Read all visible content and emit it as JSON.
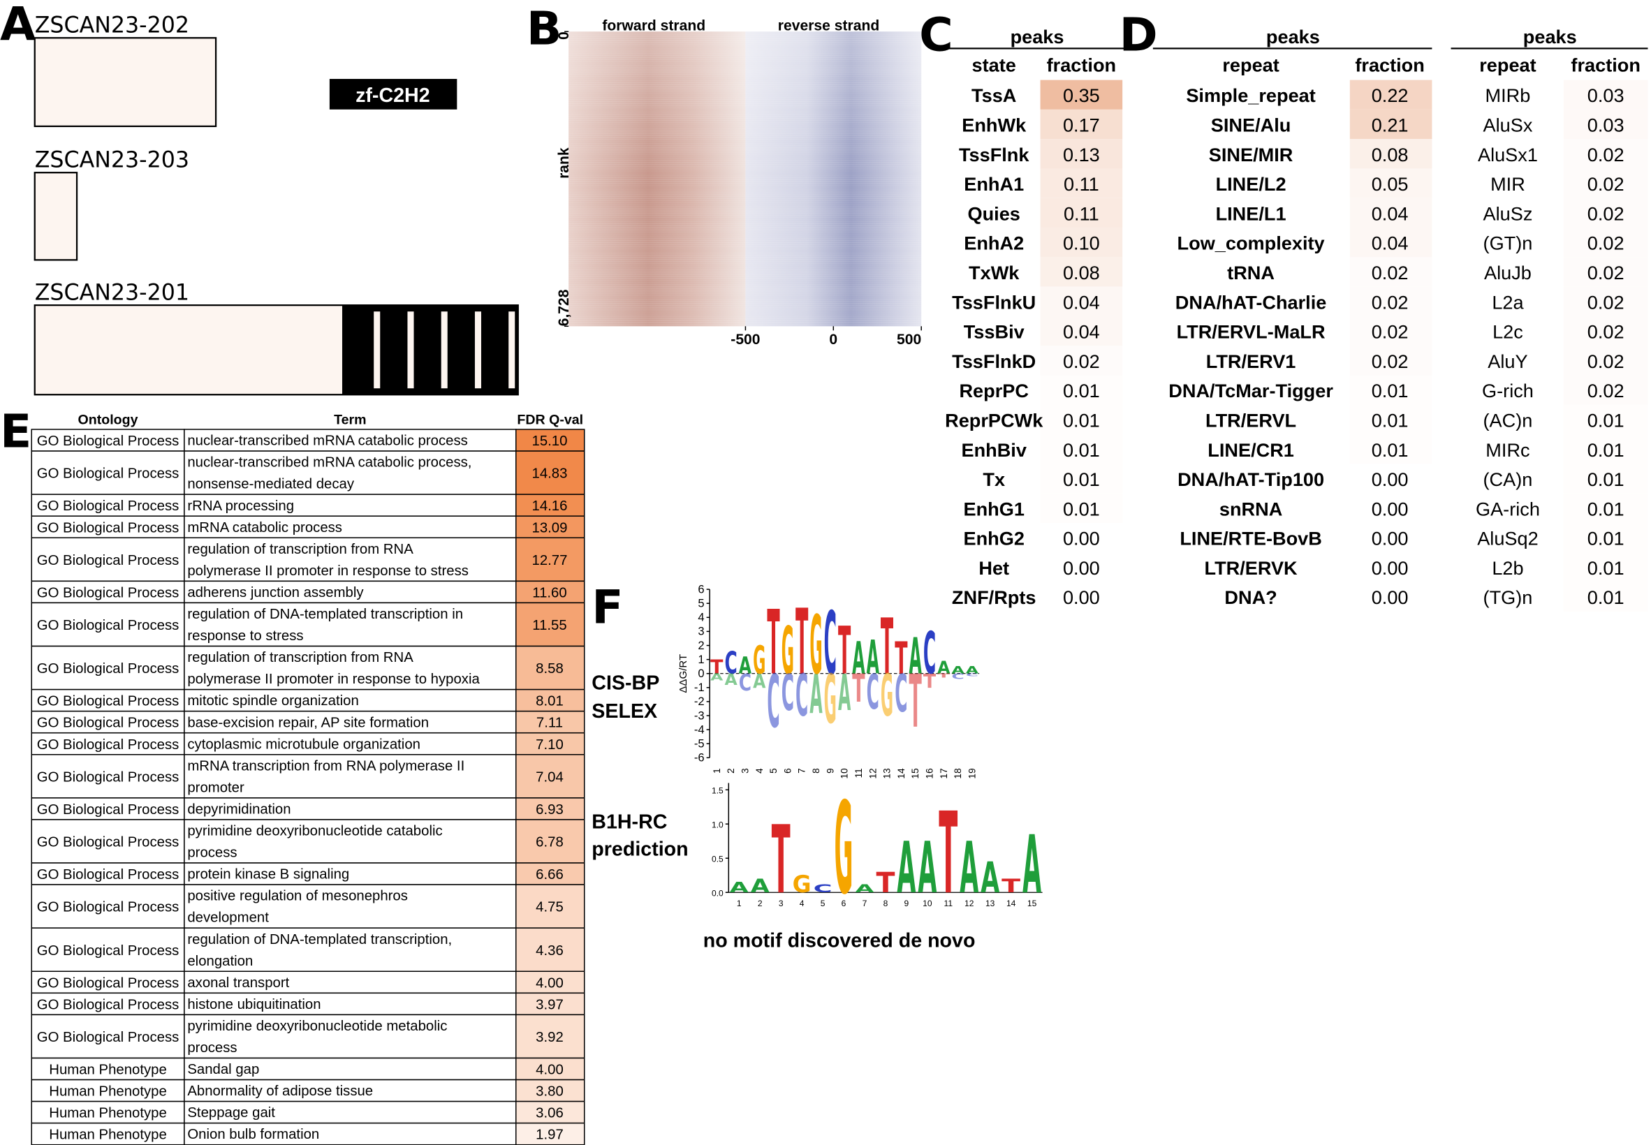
{
  "panel_labels": [
    "A",
    "B",
    "C",
    "D",
    "E",
    "F"
  ],
  "panel_a": {
    "transcripts": [
      "ZSCAN23-202",
      "ZSCAN23-203",
      "ZSCAN23-201"
    ],
    "domain": "zf-C2H2"
  },
  "panel_b": {
    "strands": [
      "forward strand",
      "reverse strand"
    ],
    "ylabel": "rank",
    "ylim": [
      0,
      6728
    ],
    "yticks": [
      0,
      {
        "value": 6728,
        "label": "6,728"
      }
    ],
    "xlim": [
      -500,
      500
    ],
    "xticks": [
      -500,
      0,
      500
    ]
  },
  "panel_c": {
    "header": "peaks",
    "columns": [
      "state",
      "fraction"
    ],
    "rows": [
      [
        "TssA",
        "0.35"
      ],
      [
        "EnhWk",
        "0.17"
      ],
      [
        "TssFlnk",
        "0.13"
      ],
      [
        "EnhA1",
        "0.11"
      ],
      [
        "Quies",
        "0.11"
      ],
      [
        "EnhA2",
        "0.10"
      ],
      [
        "TxWk",
        "0.08"
      ],
      [
        "TssFlnkU",
        "0.04"
      ],
      [
        "TssBiv",
        "0.04"
      ],
      [
        "TssFlnkD",
        "0.02"
      ],
      [
        "ReprPC",
        "0.01"
      ],
      [
        "ReprPCWk",
        "0.01"
      ],
      [
        "EnhBiv",
        "0.01"
      ],
      [
        "Tx",
        "0.01"
      ],
      [
        "EnhG1",
        "0.01"
      ],
      [
        "EnhG2",
        "0.00"
      ],
      [
        "Het",
        "0.00"
      ],
      [
        "ZNF/Rpts",
        "0.00"
      ]
    ]
  },
  "panel_d": {
    "tables": [
      {
        "header": "peaks",
        "columns": [
          "repeat",
          "fraction"
        ],
        "rows": [
          [
            "Simple_repeat",
            "0.22"
          ],
          [
            "SINE/Alu",
            "0.21"
          ],
          [
            "SINE/MIR",
            "0.08"
          ],
          [
            "LINE/L2",
            "0.05"
          ],
          [
            "LINE/L1",
            "0.04"
          ],
          [
            "Low_complexity",
            "0.04"
          ],
          [
            "tRNA",
            "0.02"
          ],
          [
            "DNA/hAT-Charlie",
            "0.02"
          ],
          [
            "LTR/ERVL-MaLR",
            "0.02"
          ],
          [
            "LTR/ERV1",
            "0.02"
          ],
          [
            "DNA/TcMar-Tigger",
            "0.01"
          ],
          [
            "LTR/ERVL",
            "0.01"
          ],
          [
            "LINE/CR1",
            "0.01"
          ],
          [
            "DNA/hAT-Tip100",
            "0.00"
          ],
          [
            "snRNA",
            "0.00"
          ],
          [
            "LINE/RTE-BovB",
            "0.00"
          ],
          [
            "LTR/ERVK",
            "0.00"
          ],
          [
            "DNA?",
            "0.00"
          ]
        ]
      },
      {
        "header": "peaks",
        "columns": [
          "repeat",
          "fraction"
        ],
        "rows": [
          [
            "MIRb",
            "0.03"
          ],
          [
            "AluSx",
            "0.03"
          ],
          [
            "AluSx1",
            "0.02"
          ],
          [
            "MIR",
            "0.02"
          ],
          [
            "AluSz",
            "0.02"
          ],
          [
            "(GT)n",
            "0.02"
          ],
          [
            "AluJb",
            "0.02"
          ],
          [
            "L2a",
            "0.02"
          ],
          [
            "L2c",
            "0.02"
          ],
          [
            "AluY",
            "0.02"
          ],
          [
            "G-rich",
            "0.02"
          ],
          [
            "(AC)n",
            "0.01"
          ],
          [
            "MIRc",
            "0.01"
          ],
          [
            "(CA)n",
            "0.01"
          ],
          [
            "GA-rich",
            "0.01"
          ],
          [
            "AluSq2",
            "0.01"
          ],
          [
            "L2b",
            "0.01"
          ],
          [
            "(TG)n",
            "0.01"
          ]
        ]
      }
    ]
  },
  "panel_e": {
    "columns": [
      "Ontology",
      "Term",
      "FDR Q-val"
    ],
    "rows": [
      {
        "ontology": "GO Biological Process",
        "term": [
          "nuclear-transcribed mRNA catabolic process"
        ],
        "fdr": "15.10"
      },
      {
        "ontology": "GO Biological Process",
        "term": [
          "nuclear-transcribed mRNA catabolic process,",
          "nonsense-mediated decay"
        ],
        "fdr": "14.83"
      },
      {
        "ontology": "GO Biological Process",
        "term": [
          "rRNA processing"
        ],
        "fdr": "14.16"
      },
      {
        "ontology": "GO Biological Process",
        "term": [
          "mRNA catabolic process"
        ],
        "fdr": "13.09"
      },
      {
        "ontology": "GO Biological Process",
        "term": [
          "regulation of transcription from RNA",
          "polymerase II promoter in response to stress"
        ],
        "fdr": "12.77"
      },
      {
        "ontology": "GO Biological Process",
        "term": [
          "adherens junction assembly"
        ],
        "fdr": "11.60"
      },
      {
        "ontology": "GO Biological Process",
        "term": [
          "regulation of DNA-templated transcription in",
          "response to stress"
        ],
        "fdr": "11.55"
      },
      {
        "ontology": "GO Biological Process",
        "term": [
          "regulation of transcription from RNA",
          "polymerase II promoter in response to hypoxia"
        ],
        "fdr": "8.58"
      },
      {
        "ontology": "GO Biological Process",
        "term": [
          "mitotic spindle organization"
        ],
        "fdr": "8.01"
      },
      {
        "ontology": "GO Biological Process",
        "term": [
          "base-excision repair, AP site formation"
        ],
        "fdr": "7.11"
      },
      {
        "ontology": "GO Biological Process",
        "term": [
          "cytoplasmic microtubule organization"
        ],
        "fdr": "7.10"
      },
      {
        "ontology": "GO Biological Process",
        "term": [
          "mRNA transcription from RNA polymerase II",
          "promoter"
        ],
        "fdr": "7.04"
      },
      {
        "ontology": "GO Biological Process",
        "term": [
          "depyrimidination"
        ],
        "fdr": "6.93"
      },
      {
        "ontology": "GO Biological Process",
        "term": [
          "pyrimidine deoxyribonucleotide catabolic",
          "process"
        ],
        "fdr": "6.78"
      },
      {
        "ontology": "GO Biological Process",
        "term": [
          "protein kinase B signaling"
        ],
        "fdr": "6.66"
      },
      {
        "ontology": "GO Biological Process",
        "term": [
          "positive regulation of mesonephros",
          "development"
        ],
        "fdr": "4.75"
      },
      {
        "ontology": "GO Biological Process",
        "term": [
          "regulation of DNA-templated transcription,",
          "elongation"
        ],
        "fdr": "4.36"
      },
      {
        "ontology": "GO Biological Process",
        "term": [
          "axonal transport"
        ],
        "fdr": "4.00"
      },
      {
        "ontology": "GO Biological Process",
        "term": [
          "histone ubiquitination"
        ],
        "fdr": "3.97"
      },
      {
        "ontology": "GO Biological Process",
        "term": [
          "pyrimidine deoxyribonucleotide metabolic",
          "process"
        ],
        "fdr": "3.92"
      },
      {
        "ontology": "Human Phenotype",
        "term": [
          "Sandal gap"
        ],
        "fdr": "4.00"
      },
      {
        "ontology": "Human Phenotype",
        "term": [
          "Abnormality of adipose tissue"
        ],
        "fdr": "3.80"
      },
      {
        "ontology": "Human Phenotype",
        "term": [
          "Steppage gait"
        ],
        "fdr": "3.06"
      },
      {
        "ontology": "Human Phenotype",
        "term": [
          "Onion bulb formation"
        ],
        "fdr": "1.97"
      }
    ]
  },
  "panel_f": {
    "logos": [
      {
        "label": [
          "CIS-BP",
          "SELEX"
        ],
        "ylabel": "ΔΔG/RT",
        "ylim": [
          -6,
          6
        ],
        "yticks": [
          6,
          5,
          4,
          3,
          2,
          1,
          0,
          -1,
          -2,
          -3,
          -4,
          -5,
          -6
        ],
        "xlim": [
          0.5,
          19.5
        ],
        "xticks": [
          1,
          2,
          3,
          4,
          5,
          6,
          7,
          8,
          9,
          10,
          11,
          12,
          13,
          14,
          15,
          16,
          17,
          18,
          19
        ],
        "above": {
          "letters": [
            "T",
            "C",
            "A",
            "G",
            "T",
            "G",
            "T",
            "G",
            "C",
            "T",
            "A",
            "A",
            "T",
            "T",
            "A",
            "C",
            "A",
            "A",
            "A"
          ],
          "heights": [
            1.0,
            1.6,
            1.2,
            2.0,
            4.6,
            3.4,
            4.7,
            4.2,
            4.5,
            3.4,
            2.3,
            2.4,
            4.0,
            2.3,
            2.6,
            3.0,
            0.9,
            0.5,
            0.5
          ]
        },
        "below": {
          "letters": [
            "A",
            "A",
            "C",
            "A",
            "C",
            "C",
            "C",
            "A",
            "G",
            "A",
            "T",
            "C",
            "G",
            "C",
            "T",
            "T",
            "T",
            "C",
            "C"
          ],
          "heights": [
            0.5,
            0.8,
            1.2,
            1.0,
            3.8,
            2.6,
            3.0,
            2.8,
            3.5,
            2.6,
            2.0,
            2.5,
            3.0,
            2.7,
            3.8,
            1.0,
            0.3,
            0.4,
            0.2
          ]
        }
      },
      {
        "label": [
          "B1H-RC",
          "prediction"
        ],
        "ylim": [
          0,
          1.6
        ],
        "yticks": [
          {
            "value": 0,
            "label": "0.0"
          },
          0.5,
          {
            "value": 1,
            "label": "1.0"
          },
          1.5
        ],
        "xlim": [
          0.5,
          15.5
        ],
        "xticks": [
          1,
          2,
          3,
          4,
          5,
          6,
          7,
          8,
          9,
          10,
          11,
          12,
          13,
          14,
          15
        ],
        "above": {
          "letters": [
            "A",
            "A",
            "T",
            "G",
            "C",
            "G",
            "A",
            "T",
            "A",
            "A",
            "T",
            "A",
            "A",
            "T",
            "A"
          ],
          "heights": [
            0.15,
            0.2,
            1.0,
            0.25,
            0.12,
            1.35,
            0.12,
            0.3,
            0.75,
            0.75,
            1.2,
            0.75,
            0.45,
            0.2,
            0.85
          ]
        }
      }
    ],
    "note": "no motif discovered de novo"
  }
}
